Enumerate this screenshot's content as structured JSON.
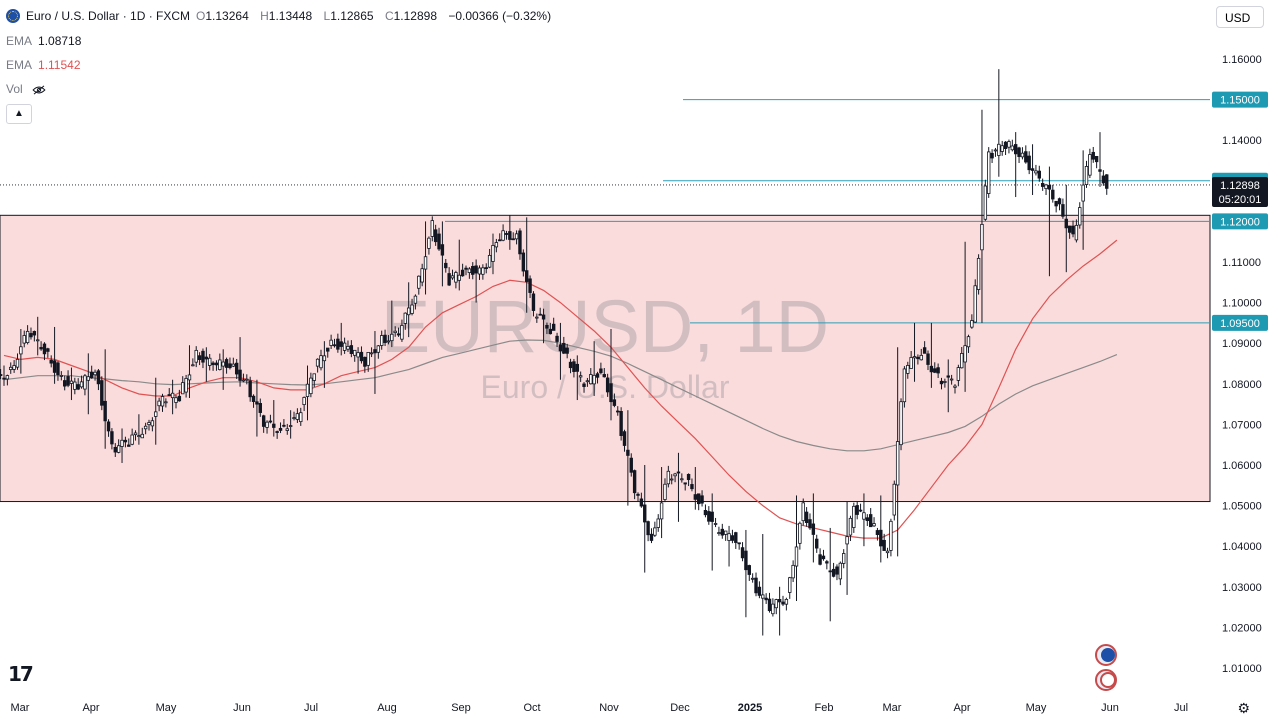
{
  "header": {
    "symbol_title": "Euro / U.S. Dollar · 1D · FXCM",
    "open_label": "O",
    "open": "1.13264",
    "high_label": "H",
    "high": "1.13448",
    "low_label": "L",
    "low": "1.12865",
    "close_label": "C",
    "close": "1.12898",
    "change": "−0.00366 (−0.32%)"
  },
  "indicators": [
    {
      "label": "EMA",
      "value": "1.08718",
      "color": "#787b86"
    },
    {
      "label": "EMA",
      "value": "1.11542",
      "color": "#e05252"
    },
    {
      "label": "Vol",
      "value": ""
    }
  ],
  "currency_button": "USD",
  "collapse_icon": "chevron-up-icon",
  "watermark": {
    "title": "EURUSD, 1D",
    "subtitle": "Euro / U.S. Dollar"
  },
  "price_labels": {
    "current": "1.12898",
    "countdown": "05:20:01",
    "h1": "1.15000",
    "h2": "1.13000",
    "h3": "1.12000",
    "h4": "1.09500"
  },
  "colors": {
    "up": "#131722",
    "down": "#131722",
    "up_body": "#ffffff",
    "ema_fast": "#e05252",
    "ema_slow": "#8a8a8a",
    "hline": "#2a9fb8",
    "zone_fill": "#fadcdc",
    "zone_border": "#131722",
    "label_bg": "#1f9ab3",
    "current_bg": "#131722"
  },
  "chart_data": {
    "type": "candlestick",
    "title": "EURUSD, 1D",
    "subtitle": "Euro / U.S. Dollar",
    "ylim": [
      1.0,
      1.17
    ],
    "y_ticks": [
      "1.16000",
      "1.15000",
      "1.14000",
      "1.13000",
      "1.12000",
      "1.11000",
      "1.10000",
      "1.09000",
      "1.08000",
      "1.07000",
      "1.06000",
      "1.05000",
      "1.04000",
      "1.03000",
      "1.02000",
      "1.01000"
    ],
    "x_ticks": [
      "Mar",
      "Apr",
      "May",
      "Jun",
      "Jul",
      "Aug",
      "Sep",
      "Oct",
      "Nov",
      "Dec",
      "2025",
      "Feb",
      "Mar",
      "Apr",
      "May",
      "Jun",
      "Jul"
    ],
    "horizontal_lines": [
      1.15,
      1.13,
      1.12,
      1.095
    ],
    "zone": [
      1.051,
      1.1215
    ],
    "current_price": 1.12898,
    "ohlc_days": [
      [
        "2024-03-01",
        1.0805,
        1.0845,
        1.0795,
        1.0835
      ],
      [
        "2024-03-08",
        1.0835,
        1.0935,
        1.0825,
        1.0925
      ],
      [
        "2024-03-15",
        1.0925,
        1.0965,
        1.087,
        1.0885
      ],
      [
        "2024-03-22",
        1.0885,
        1.094,
        1.08,
        1.081
      ],
      [
        "2024-03-29",
        1.081,
        1.084,
        1.076,
        1.079
      ],
      [
        "2024-04-05",
        1.079,
        1.0875,
        1.0725,
        1.0835
      ],
      [
        "2024-04-12",
        1.0835,
        1.0885,
        1.064,
        1.064
      ],
      [
        "2024-04-19",
        1.064,
        1.069,
        1.0605,
        1.0655
      ],
      [
        "2024-04-26",
        1.0655,
        1.0725,
        1.065,
        1.0695
      ],
      [
        "2024-05-03",
        1.0695,
        1.0815,
        1.065,
        1.076
      ],
      [
        "2024-05-10",
        1.076,
        1.081,
        1.0725,
        1.077
      ],
      [
        "2024-05-17",
        1.077,
        1.0895,
        1.0765,
        1.0875
      ],
      [
        "2024-05-24",
        1.0875,
        1.089,
        1.0805,
        1.0845
      ],
      [
        "2024-05-31",
        1.0845,
        1.0885,
        1.0785,
        1.085
      ],
      [
        "2024-06-07",
        1.085,
        1.0915,
        1.08,
        1.08
      ],
      [
        "2024-06-14",
        1.08,
        1.081,
        1.067,
        1.07
      ],
      [
        "2024-06-21",
        1.07,
        1.076,
        1.067,
        1.069
      ],
      [
        "2024-06-28",
        1.069,
        1.0735,
        1.0665,
        1.0715
      ],
      [
        "2024-07-05",
        1.0715,
        1.0845,
        1.071,
        1.0835
      ],
      [
        "2024-07-12",
        1.0835,
        1.0905,
        1.079,
        1.0905
      ],
      [
        "2024-07-19",
        1.0905,
        1.095,
        1.087,
        1.0885
      ],
      [
        "2024-07-26",
        1.0885,
        1.088,
        1.0825,
        1.0855
      ],
      [
        "2024-08-02",
        1.0855,
        1.093,
        1.0775,
        1.091
      ],
      [
        "2024-08-09",
        1.091,
        1.1005,
        1.0915,
        1.092
      ],
      [
        "2024-08-16",
        1.092,
        1.105,
        1.0915,
        1.1025
      ],
      [
        "2024-08-23",
        1.1025,
        1.12,
        1.102,
        1.119
      ],
      [
        "2024-08-30",
        1.119,
        1.12,
        1.104,
        1.105
      ],
      [
        "2024-09-06",
        1.105,
        1.1155,
        1.103,
        1.1085
      ],
      [
        "2024-09-13",
        1.1085,
        1.1105,
        1.1,
        1.1075
      ],
      [
        "2024-09-20",
        1.1075,
        1.117,
        1.107,
        1.1165
      ],
      [
        "2024-09-27",
        1.1165,
        1.1215,
        1.113,
        1.1165
      ],
      [
        "2024-10-04",
        1.1165,
        1.121,
        1.0975,
        1.0975
      ],
      [
        "2024-10-11",
        1.0975,
        1.0985,
        1.09,
        1.0935
      ],
      [
        "2024-10-18",
        1.0935,
        1.095,
        1.081,
        1.0865
      ],
      [
        "2024-10-25",
        1.0865,
        1.087,
        1.076,
        1.0795
      ],
      [
        "2024-11-01",
        1.0795,
        1.0905,
        1.077,
        1.0835
      ],
      [
        "2024-11-08",
        1.0835,
        1.0935,
        1.071,
        1.072
      ],
      [
        "2024-11-15",
        1.072,
        1.0735,
        1.05,
        1.054
      ],
      [
        "2024-11-22",
        1.054,
        1.06,
        1.0335,
        1.0415
      ],
      [
        "2024-11-29",
        1.0415,
        1.0595,
        1.042,
        1.0575
      ],
      [
        "2024-12-06",
        1.0575,
        1.063,
        1.046,
        1.0565
      ],
      [
        "2024-12-13",
        1.0565,
        1.0595,
        1.049,
        1.05
      ],
      [
        "2024-12-20",
        1.05,
        1.053,
        1.034,
        1.043
      ],
      [
        "2024-12-27",
        1.043,
        1.045,
        1.035,
        1.042
      ],
      [
        "2025-01-03",
        1.042,
        1.044,
        1.0225,
        1.031
      ],
      [
        "2025-01-10",
        1.031,
        1.043,
        1.018,
        1.0245
      ],
      [
        "2025-01-17",
        1.0245,
        1.03,
        1.018,
        1.0275
      ],
      [
        "2025-01-24",
        1.0275,
        1.0525,
        1.0265,
        1.0495
      ],
      [
        "2025-01-31",
        1.0495,
        1.053,
        1.036,
        1.0365
      ],
      [
        "2025-02-07",
        1.0365,
        1.0445,
        1.0215,
        1.033
      ],
      [
        "2025-02-14",
        1.033,
        1.051,
        1.028,
        1.049
      ],
      [
        "2025-02-21",
        1.049,
        1.053,
        1.04,
        1.046
      ],
      [
        "2025-02-28",
        1.046,
        1.0525,
        1.036,
        1.038
      ],
      [
        "2025-03-07",
        1.038,
        1.089,
        1.0375,
        1.0835
      ],
      [
        "2025-03-14",
        1.0835,
        1.095,
        1.0805,
        1.088
      ],
      [
        "2025-03-21",
        1.088,
        1.095,
        1.079,
        1.0815
      ],
      [
        "2025-03-28",
        1.0815,
        1.086,
        1.073,
        1.08
      ],
      [
        "2025-04-04",
        1.08,
        1.115,
        1.078,
        1.096
      ],
      [
        "2025-04-11",
        1.096,
        1.1475,
        1.095,
        1.136
      ],
      [
        "2025-04-18",
        1.136,
        1.1575,
        1.131,
        1.139
      ],
      [
        "2025-04-25",
        1.139,
        1.142,
        1.126,
        1.1365
      ],
      [
        "2025-05-02",
        1.1365,
        1.139,
        1.1265,
        1.13
      ],
      [
        "2025-05-09",
        1.13,
        1.1335,
        1.1065,
        1.125
      ],
      [
        "2025-05-16",
        1.125,
        1.129,
        1.1075,
        1.116
      ],
      [
        "2025-05-23",
        1.116,
        1.1375,
        1.113,
        1.1365
      ],
      [
        "2025-05-30",
        1.1365,
        1.142,
        1.1285,
        1.129
      ]
    ],
    "ema_fast_points": [
      [
        1.087
      ],
      [
        1.086
      ],
      [
        1.0865
      ],
      [
        1.086
      ],
      [
        1.0845
      ],
      [
        1.083
      ],
      [
        1.081
      ],
      [
        1.079
      ],
      [
        1.0775
      ],
      [
        1.077
      ],
      [
        1.077
      ],
      [
        1.079
      ],
      [
        1.0805
      ],
      [
        1.0815
      ],
      [
        1.0815
      ],
      [
        1.0805
      ],
      [
        1.079
      ],
      [
        1.0785
      ],
      [
        1.0785
      ],
      [
        1.08
      ],
      [
        1.082
      ],
      [
        1.083
      ],
      [
        1.084
      ],
      [
        1.086
      ],
      [
        1.089
      ],
      [
        1.094
      ],
      [
        1.0975
      ],
      [
        1.0995
      ],
      [
        1.1015
      ],
      [
        1.104
      ],
      [
        1.1055
      ],
      [
        1.105
      ],
      [
        1.103
      ],
      [
        1.1
      ],
      [
        1.0965
      ],
      [
        1.093
      ],
      [
        1.089
      ],
      [
        1.084
      ],
      [
        1.079
      ],
      [
        1.0745
      ],
      [
        1.0705
      ],
      [
        1.0665
      ],
      [
        1.062
      ],
      [
        1.0575
      ],
      [
        1.0535
      ],
      [
        1.05
      ],
      [
        1.047
      ],
      [
        1.0455
      ],
      [
        1.0445
      ],
      [
        1.0435
      ],
      [
        1.0425
      ],
      [
        1.042
      ],
      [
        1.042
      ],
      [
        1.044
      ],
      [
        1.049
      ],
      [
        1.0545
      ],
      [
        1.06
      ],
      [
        1.0645
      ],
      [
        1.07
      ],
      [
        1.079
      ],
      [
        1.0885
      ],
      [
        1.096
      ],
      [
        1.1015
      ],
      [
        1.1055
      ],
      [
        1.109
      ],
      [
        1.112
      ],
      [
        1.1154
      ]
    ],
    "ema_slow_points": [
      [
        1.081
      ],
      [
        1.0815
      ],
      [
        1.082
      ],
      [
        1.082
      ],
      [
        1.082
      ],
      [
        1.0815
      ],
      [
        1.0812
      ],
      [
        1.0808
      ],
      [
        1.0805
      ],
      [
        1.08
      ],
      [
        1.0798
      ],
      [
        1.08
      ],
      [
        1.0802
      ],
      [
        1.0804
      ],
      [
        1.0805
      ],
      [
        1.0802
      ],
      [
        1.08
      ],
      [
        1.0798
      ],
      [
        1.0797
      ],
      [
        1.08
      ],
      [
        1.0805
      ],
      [
        1.081
      ],
      [
        1.0815
      ],
      [
        1.0825
      ],
      [
        1.0835
      ],
      [
        1.085
      ],
      [
        1.0865
      ],
      [
        1.0875
      ],
      [
        1.0885
      ],
      [
        1.0895
      ],
      [
        1.0905
      ],
      [
        1.0908
      ],
      [
        1.0907
      ],
      [
        1.09
      ],
      [
        1.089
      ],
      [
        1.088
      ],
      [
        1.0868
      ],
      [
        1.085
      ],
      [
        1.083
      ],
      [
        1.081
      ],
      [
        1.079
      ],
      [
        1.077
      ],
      [
        1.075
      ],
      [
        1.073
      ],
      [
        1.071
      ],
      [
        1.069
      ],
      [
        1.0672
      ],
      [
        1.0658
      ],
      [
        1.0648
      ],
      [
        1.064
      ],
      [
        1.0635
      ],
      [
        1.0635
      ],
      [
        1.064
      ],
      [
        1.065
      ],
      [
        1.066
      ],
      [
        1.067
      ],
      [
        1.068
      ],
      [
        1.0695
      ],
      [
        1.072
      ],
      [
        1.075
      ],
      [
        1.0775
      ],
      [
        1.0795
      ],
      [
        1.081
      ],
      [
        1.0825
      ],
      [
        1.084
      ],
      [
        1.0855
      ],
      [
        1.0872
      ]
    ]
  }
}
